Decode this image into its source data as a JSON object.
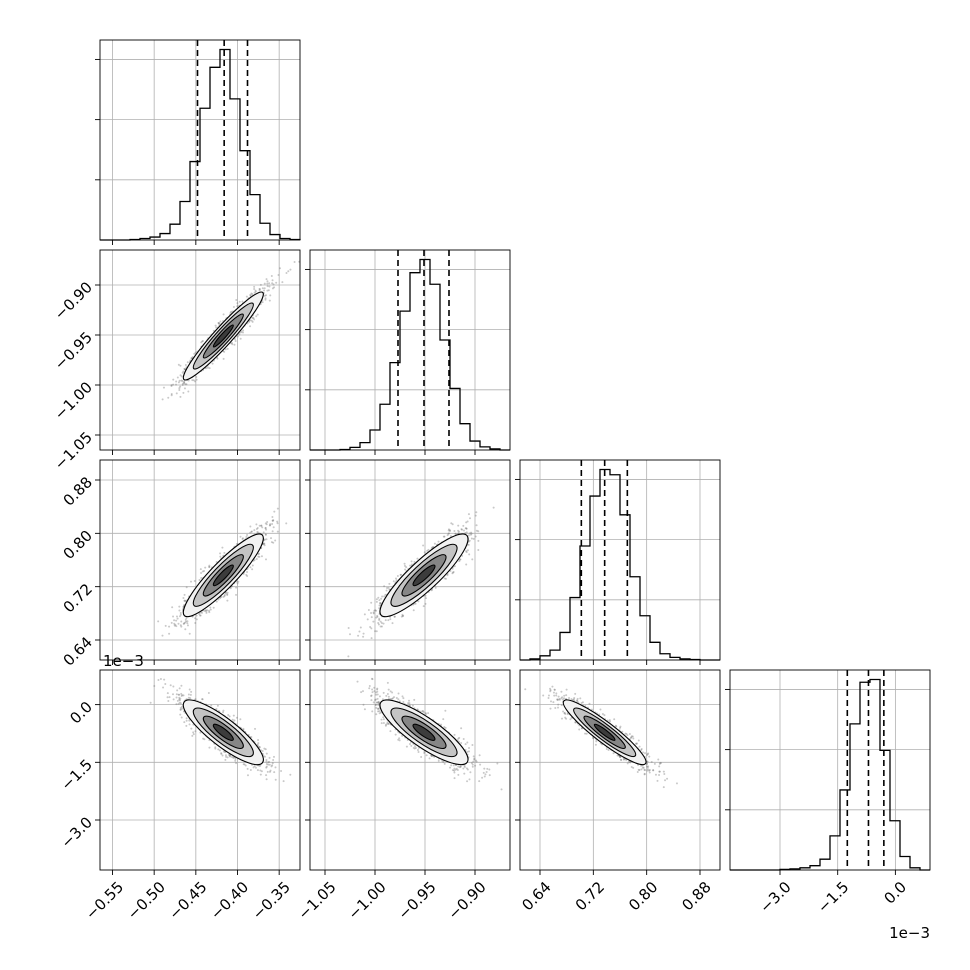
{
  "chart_data": {
    "type": "corner",
    "parameters": [
      {
        "id": "p0",
        "ticks": [
          -0.55,
          -0.5,
          -0.45,
          -0.4,
          -0.35
        ],
        "tick_labels": [
          "−0.55",
          "−0.50",
          "−0.45",
          "−0.40",
          "−0.35"
        ],
        "range": [
          -0.565,
          -0.325
        ],
        "quantiles": [
          -0.448,
          -0.416,
          -0.388
        ],
        "mean": -0.417,
        "std": 0.024,
        "offset_label": ""
      },
      {
        "id": "p1",
        "ticks": [
          -1.05,
          -1.0,
          -0.95,
          -0.9
        ],
        "tick_labels": [
          "−1.05",
          "−1.00",
          "−0.95",
          "−0.90"
        ],
        "range": [
          -1.065,
          -0.865
        ],
        "quantiles": [
          -0.977,
          -0.951,
          -0.926
        ],
        "mean": -0.951,
        "std": 0.022,
        "offset_label": ""
      },
      {
        "id": "p2",
        "ticks": [
          0.64,
          0.72,
          0.8,
          0.88
        ],
        "tick_labels": [
          "0.64",
          "0.72",
          "0.80",
          "0.88"
        ],
        "range": [
          0.61,
          0.91
        ],
        "quantiles": [
          0.702,
          0.737,
          0.771
        ],
        "mean": 0.737,
        "std": 0.031,
        "offset_label": ""
      },
      {
        "id": "p3",
        "ticks": [
          -3.0,
          -1.5,
          0.0
        ],
        "tick_labels": [
          "−3.0",
          "−1.5",
          "0.0"
        ],
        "range": [
          -4.3,
          0.9
        ],
        "quantiles": [
          -1.25,
          -0.7,
          -0.3
        ],
        "mean": -0.72,
        "std": 0.42,
        "offset_label": "1e−3",
        "offset_on_x": true,
        "offset_on_y": true
      }
    ],
    "histograms": {
      "p0": {
        "bin_edges": [
          -0.565,
          -0.553,
          -0.541,
          -0.529,
          -0.517,
          -0.505,
          -0.493,
          -0.481,
          -0.469,
          -0.457,
          -0.445,
          -0.433,
          -0.421,
          -0.409,
          -0.397,
          -0.385,
          -0.373,
          -0.361,
          -0.349,
          -0.337,
          -0.325
        ],
        "counts": [
          0,
          0,
          0,
          1,
          3,
          6,
          13,
          32,
          78,
          159,
          267,
          350,
          386,
          286,
          181,
          92,
          34,
          11,
          3,
          1
        ]
      },
      "p1": {
        "bin_edges": [
          -1.065,
          -1.055,
          -1.045,
          -1.035,
          -1.025,
          -1.015,
          -1.005,
          -0.995,
          -0.985,
          -0.975,
          -0.965,
          -0.955,
          -0.945,
          -0.935,
          -0.925,
          -0.915,
          -0.905,
          -0.895,
          -0.885,
          -0.875,
          -0.865
        ],
        "counts": [
          0,
          0,
          0,
          1,
          5,
          14,
          38,
          87,
          166,
          264,
          337,
          362,
          315,
          209,
          117,
          50,
          17,
          6,
          2,
          0
        ]
      },
      "p2": {
        "bin_edges": [
          0.61,
          0.625,
          0.64,
          0.655,
          0.67,
          0.685,
          0.7,
          0.715,
          0.73,
          0.745,
          0.76,
          0.775,
          0.79,
          0.805,
          0.82,
          0.835,
          0.85,
          0.865,
          0.88,
          0.895,
          0.91
        ],
        "counts": [
          0,
          2,
          8,
          19,
          53,
          120,
          219,
          315,
          366,
          356,
          279,
          160,
          85,
          34,
          12,
          5,
          2,
          1,
          0,
          0
        ]
      },
      "p3": {
        "bin_edges": [
          -4.3,
          -4.04,
          -3.78,
          -3.52,
          -3.26,
          -3.0,
          -2.74,
          -2.48,
          -2.22,
          -1.96,
          -1.7,
          -1.44,
          -1.18,
          -0.92,
          -0.66,
          -0.4,
          -0.14,
          0.12,
          0.38,
          0.64,
          0.9
        ],
        "counts": [
          0,
          0,
          0,
          0,
          0,
          1,
          2,
          4,
          8,
          20,
          63,
          148,
          270,
          347,
          352,
          221,
          91,
          25,
          4,
          0
        ]
      }
    },
    "correlations": {
      "p0_p1": 0.95,
      "p0_p2": 0.9,
      "p1_p2": 0.88,
      "p0_p3": -0.85,
      "p1_p3": -0.84,
      "p2_p3": -0.92
    },
    "quantile_levels": [
      0.16,
      0.5,
      0.84
    ],
    "contour_levels": [
      0.5,
      1.0,
      1.5,
      2.0
    ],
    "grid": true,
    "colors": {
      "line": "#000000",
      "grid": "#b0b0b0",
      "points": "#777777",
      "fill_levels": [
        "#f2f2f2",
        "#c4c4c4",
        "#868686",
        "#3c3c3c"
      ]
    }
  }
}
